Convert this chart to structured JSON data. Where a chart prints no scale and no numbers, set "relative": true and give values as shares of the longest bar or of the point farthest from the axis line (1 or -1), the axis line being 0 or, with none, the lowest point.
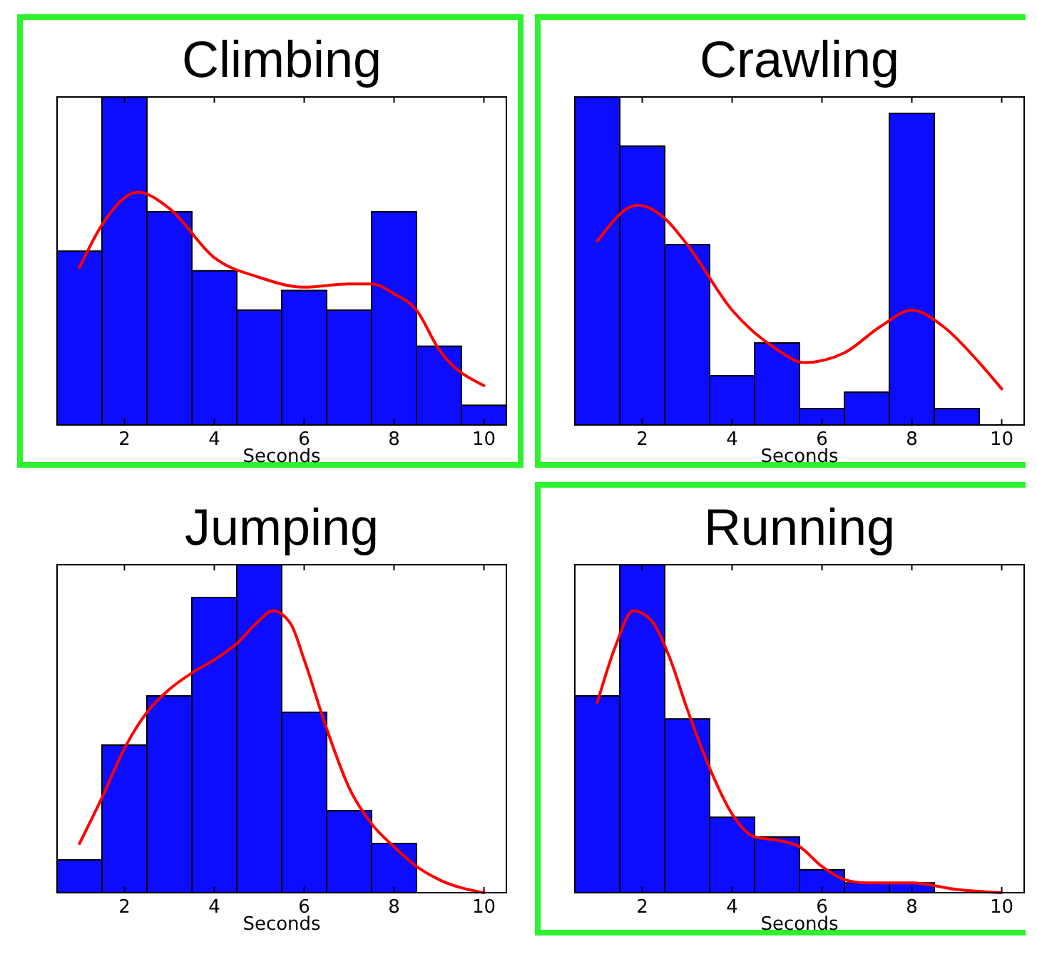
{
  "chart_data": [
    {
      "type": "histogram",
      "title": "Climbing",
      "xlabel": "Seconds",
      "relative": true,
      "xlim": [
        0.5,
        10.5
      ],
      "xticks": [
        2,
        4,
        6,
        8,
        10
      ],
      "bins": [
        0.5,
        1.5,
        2.5,
        3.5,
        4.5,
        5.5,
        6.5,
        7.5,
        8.5,
        9.5,
        10.5
      ],
      "values": [
        0.53,
        1,
        0.65,
        0.47,
        0.35,
        0.41,
        0.35,
        0.65,
        0.24,
        0.06
      ],
      "color": "#0c0cff",
      "series": [
        {
          "type": "line",
          "color": "#ff0000",
          "x": [
            1,
            1.5,
            2.3,
            3,
            4,
            5,
            6,
            7,
            7.5,
            8,
            8.5,
            9,
            10
          ],
          "values": [
            0.48,
            0.61,
            0.71,
            0.66,
            0.51,
            0.45,
            0.42,
            0.43,
            0.43,
            0.4,
            0.35,
            0.23,
            0.12
          ]
        }
      ]
    },
    {
      "type": "histogram",
      "title": "Crawling",
      "xlabel": "Seconds",
      "relative": true,
      "xlim": [
        0.5,
        10.5
      ],
      "xticks": [
        2,
        4,
        6,
        8,
        10
      ],
      "bins": [
        0.5,
        1.5,
        2.5,
        3.5,
        4.5,
        5.5,
        6.5,
        7.5,
        8.5,
        9.5,
        10.5
      ],
      "values": [
        1,
        0.85,
        0.55,
        0.15,
        0.25,
        0.05,
        0.1,
        0.95,
        0.05,
        0
      ],
      "color": "#0c0cff",
      "series": [
        {
          "type": "line",
          "color": "#ff0000",
          "x": [
            1,
            1.9,
            2.5,
            3,
            4,
            5,
            5.6,
            6.5,
            7.3,
            8,
            8.7,
            9.5,
            10
          ],
          "values": [
            0.56,
            0.67,
            0.63,
            0.55,
            0.35,
            0.23,
            0.19,
            0.22,
            0.3,
            0.35,
            0.3,
            0.19,
            0.11
          ]
        }
      ]
    },
    {
      "type": "histogram",
      "title": "Jumping",
      "xlabel": "Seconds",
      "relative": true,
      "xlim": [
        0.5,
        10.5
      ],
      "xticks": [
        2,
        4,
        6,
        8,
        10
      ],
      "bins": [
        0.5,
        1.5,
        2.5,
        3.5,
        4.5,
        5.5,
        6.5,
        7.5,
        8.5,
        9.5,
        10.5
      ],
      "values": [
        0.1,
        0.45,
        0.6,
        0.9,
        1,
        0.55,
        0.25,
        0.15,
        0,
        0
      ],
      "color": "#0c0cff",
      "series": [
        {
          "type": "line",
          "color": "#ff0000",
          "x": [
            1,
            1.5,
            2,
            2.5,
            3,
            3.5,
            4,
            4.5,
            5,
            5.3,
            5.7,
            6,
            6.5,
            7,
            7.5,
            8,
            8.5,
            9,
            10
          ],
          "values": [
            0.15,
            0.29,
            0.44,
            0.55,
            0.62,
            0.67,
            0.71,
            0.76,
            0.83,
            0.86,
            0.82,
            0.71,
            0.5,
            0.32,
            0.21,
            0.14,
            0.08,
            0.04,
            0
          ]
        }
      ]
    },
    {
      "type": "histogram",
      "title": "Running",
      "xlabel": "Seconds",
      "relative": true,
      "xlim": [
        0.5,
        10.5
      ],
      "xticks": [
        2,
        4,
        6,
        8,
        10
      ],
      "bins": [
        0.5,
        1.5,
        2.5,
        3.5,
        4.5,
        5.5,
        6.5,
        7.5,
        8.5,
        9.5,
        10.5
      ],
      "values": [
        0.6,
        1,
        0.53,
        0.23,
        0.17,
        0.07,
        0.03,
        0.03,
        0,
        0
      ],
      "color": "#0c0cff",
      "series": [
        {
          "type": "line",
          "color": "#ff0000",
          "x": [
            1,
            1.4,
            1.8,
            2.2,
            2.6,
            3,
            3.5,
            4,
            4.5,
            5,
            5.5,
            6,
            6.5,
            7,
            8,
            9,
            10
          ],
          "values": [
            0.58,
            0.75,
            0.86,
            0.83,
            0.72,
            0.56,
            0.38,
            0.24,
            0.17,
            0.16,
            0.14,
            0.08,
            0.04,
            0.03,
            0.03,
            0.01,
            0
          ]
        }
      ]
    }
  ]
}
